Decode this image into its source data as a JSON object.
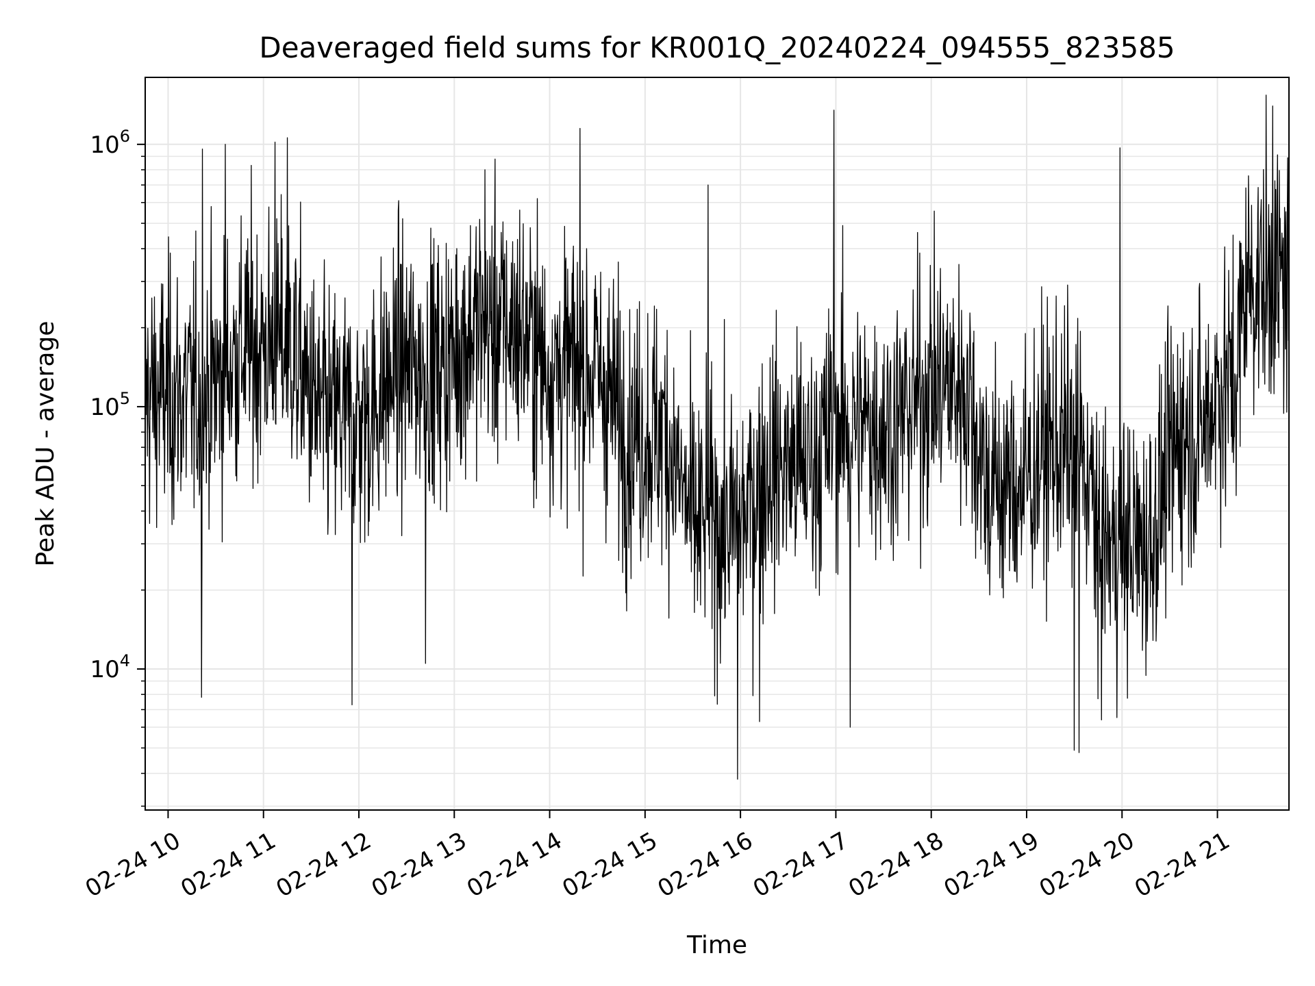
{
  "chart_data": {
    "type": "line",
    "title": "Deaveraged field sums for KR001Q_20240224_094555_823585",
    "xlabel": "Time",
    "ylabel": "Peak ADU - average",
    "yscale": "log",
    "grid": true,
    "x_ticks": [
      "02-24 10",
      "02-24 11",
      "02-24 12",
      "02-24 13",
      "02-24 14",
      "02-24 15",
      "02-24 16",
      "02-24 17",
      "02-24 18",
      "02-24 19",
      "02-24 20",
      "02-24 21"
    ],
    "x_tick_hours": [
      10,
      11,
      12,
      13,
      14,
      15,
      16,
      17,
      18,
      19,
      20,
      21
    ],
    "xlim_hours": [
      9.76,
      21.75
    ],
    "ylim": [
      2900,
      1800000
    ],
    "y_ticks": [
      {
        "base": "10",
        "exp": "4",
        "value": 10000
      },
      {
        "base": "10",
        "exp": "5",
        "value": 100000
      },
      {
        "base": "10",
        "exp": "6",
        "value": 1000000
      }
    ],
    "series": [
      {
        "color": "#000000",
        "segments": [
          {
            "start_hour": 9.76,
            "end_hour": 10.8,
            "median": 110000
          },
          {
            "start_hour": 10.8,
            "end_hour": 11.6,
            "median": 170000
          },
          {
            "start_hour": 11.6,
            "end_hour": 12.4,
            "median": 90000
          },
          {
            "start_hour": 12.4,
            "end_hour": 13.2,
            "median": 140000
          },
          {
            "start_hour": 13.2,
            "end_hour": 14.0,
            "median": 200000
          },
          {
            "start_hour": 14.0,
            "end_hour": 14.8,
            "median": 140000
          },
          {
            "start_hour": 14.8,
            "end_hour": 15.5,
            "median": 80000
          },
          {
            "start_hour": 15.5,
            "end_hour": 16.3,
            "median": 35000
          },
          {
            "start_hour": 16.3,
            "end_hour": 17.0,
            "median": 60000
          },
          {
            "start_hour": 17.0,
            "end_hour": 18.0,
            "median": 85000
          },
          {
            "start_hour": 18.0,
            "end_hour": 18.6,
            "median": 120000
          },
          {
            "start_hour": 18.6,
            "end_hour": 19.2,
            "median": 50000
          },
          {
            "start_hour": 19.2,
            "end_hour": 19.8,
            "median": 70000
          },
          {
            "start_hour": 19.8,
            "end_hour": 20.6,
            "median": 30000
          },
          {
            "start_hour": 20.6,
            "end_hour": 21.0,
            "median": 80000
          },
          {
            "start_hour": 21.0,
            "end_hour": 21.3,
            "median": 120000
          },
          {
            "start_hour": 21.3,
            "end_hour": 21.75,
            "median": 300000
          }
        ],
        "peaks": [
          {
            "hour": 10.36,
            "value": 960000
          },
          {
            "hour": 10.6,
            "value": 1000000
          },
          {
            "hour": 11.12,
            "value": 1020000
          },
          {
            "hour": 11.25,
            "value": 1060000
          },
          {
            "hour": 13.32,
            "value": 800000
          },
          {
            "hour": 14.32,
            "value": 1150000
          },
          {
            "hour": 15.66,
            "value": 700000
          },
          {
            "hour": 16.98,
            "value": 1350000
          },
          {
            "hour": 19.98,
            "value": 970000
          },
          {
            "hour": 21.58,
            "value": 1400000
          }
        ],
        "dips": [
          {
            "hour": 10.35,
            "value": 7800
          },
          {
            "hour": 11.93,
            "value": 7300
          },
          {
            "hour": 12.7,
            "value": 10500
          },
          {
            "hour": 15.97,
            "value": 3800
          },
          {
            "hour": 16.2,
            "value": 6300
          },
          {
            "hour": 17.15,
            "value": 6000
          },
          {
            "hour": 19.55,
            "value": 4800
          },
          {
            "hour": 19.5,
            "value": 4900
          },
          {
            "hour": 19.75,
            "value": 7700
          }
        ]
      }
    ]
  }
}
